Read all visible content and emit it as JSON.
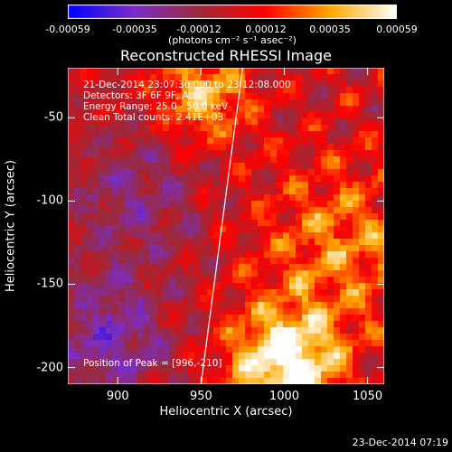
{
  "colorbar": {
    "ticks": [
      "-0.00059",
      "-0.00035",
      "-0.00012",
      "0.00012",
      "0.00035",
      "0.00059"
    ],
    "tick_values": [
      -0.00059,
      -0.00035,
      -0.00012,
      0.00012,
      0.00035,
      0.00059
    ],
    "range": [
      -0.00059,
      0.00059
    ],
    "units": "(photons cm⁻² s⁻¹ asec⁻²)"
  },
  "chart_data": {
    "type": "heatmap",
    "title": "Reconstructed RHESSI Image",
    "xlabel": "Heliocentric X (arcsec)",
    "ylabel": "Heliocentric Y (arcsec)",
    "xlim": [
      870,
      1060
    ],
    "ylim": [
      -210,
      -20
    ],
    "xticks": [
      900,
      950,
      1000,
      1050
    ],
    "yticks": [
      -50,
      -100,
      -150,
      -200
    ],
    "limb_line": [
      [
        950,
        -210
      ],
      [
        975,
        -20
      ]
    ],
    "peak": [
      996,
      -210
    ],
    "colormap": [
      "#0000ff",
      "#7a2dc8",
      "#9b2a3a",
      "#ff0000",
      "#ffaa00",
      "#ffffff"
    ]
  },
  "annotations": {
    "time": "21-Dec-2014 23:07:36.000 to 23:12:08.000",
    "detectors": "Detectors: 3F 6F 9F, Att 0",
    "energy": "Energy Range: 25.0 - 50.0 keV",
    "clean": "Clean     Total counts: 2.41E+03",
    "peak": "Position of Peak = [996,-210]"
  },
  "timestamp": "23-Dec-2014 07:19"
}
